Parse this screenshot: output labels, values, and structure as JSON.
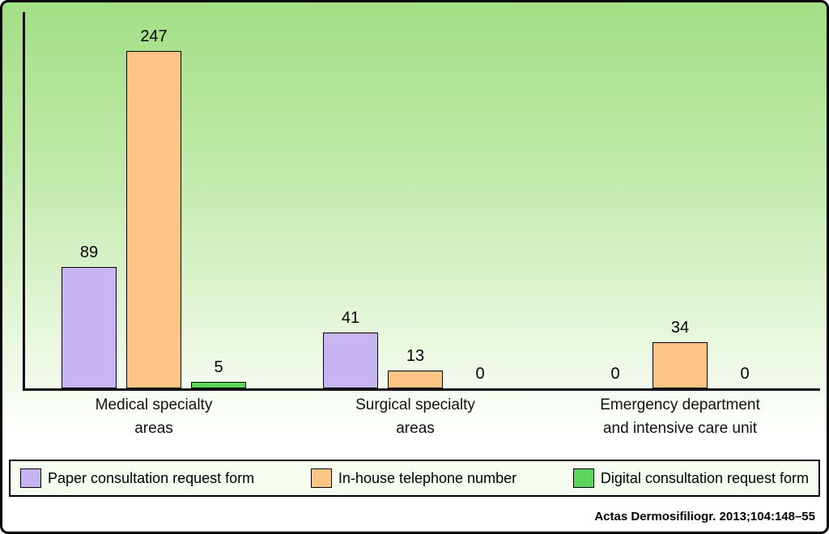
{
  "figure": {
    "background_top_color": "#a2df85",
    "background_bottom_color": "#ffffff",
    "border_color": "#000000"
  },
  "chart_data": {
    "type": "bar",
    "title": "",
    "xlabel": "",
    "ylabel": "",
    "ylim": [
      0,
      250
    ],
    "grid": false,
    "legend_position": "bottom",
    "value_labels": true,
    "categories": [
      [
        "Medical specialty",
        "areas"
      ],
      [
        "Surgical specialty",
        "areas"
      ],
      [
        "Emergency department",
        "and intensive care unit"
      ]
    ],
    "series": [
      {
        "name": "Paper consultation request form",
        "color": "#c6b4f3",
        "values": [
          89,
          41,
          0
        ]
      },
      {
        "name": "In-house telephone number",
        "color": "#fbc586",
        "values": [
          247,
          13,
          34
        ]
      },
      {
        "name": "Digital consultation request form",
        "color": "#5bd65b",
        "values": [
          5,
          0,
          0
        ]
      }
    ]
  },
  "footer": {
    "citation": "Actas Dermosifiliogr. 2013;104:148–55"
  }
}
